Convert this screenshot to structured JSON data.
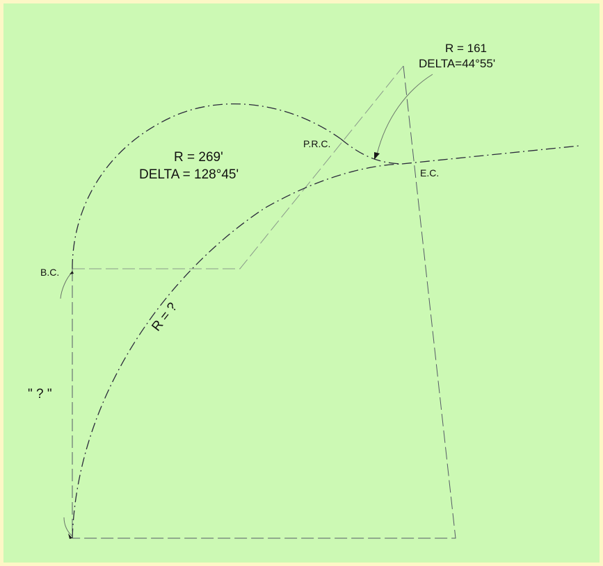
{
  "diagram": {
    "curve_large": {
      "radius_label": "R = 269'",
      "delta_label": "DELTA = 128°45'"
    },
    "curve_small": {
      "radius_label": "R = 161",
      "delta_label": "DELTA=44°55'"
    },
    "unknown_curve": {
      "radius_label": "R = ?"
    },
    "unknown_distance_label": "\" ? \"",
    "points": {
      "bc": "B.C.",
      "prc": "P.R.C.",
      "ec": "E.C."
    },
    "colors": {
      "background": "#ccf9b4",
      "border": "#fdf7c6",
      "line": "#2a2a3a"
    }
  }
}
